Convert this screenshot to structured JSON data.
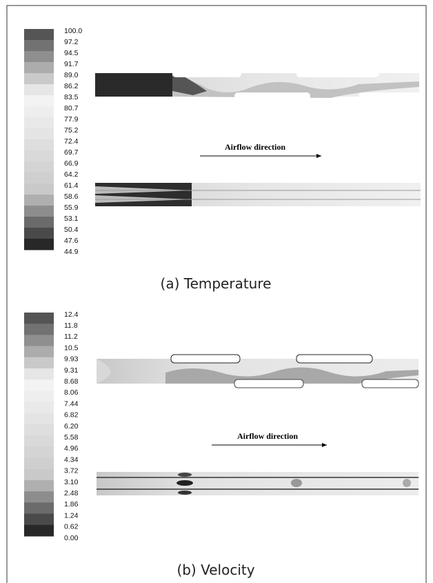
{
  "panels": [
    {
      "caption": "(a) Temperature",
      "arrow_label": "Airflow direction",
      "legend_labels": [
        "100.0",
        "97.2",
        "94.5",
        "91.7",
        "89.0",
        "86.2",
        "83.5",
        "80.7",
        "77.9",
        "75.2",
        "72.4",
        "69.7",
        "66.9",
        "64.2",
        "61.4",
        "58.6",
        "55.9",
        "53.1",
        "50.4",
        "47.6",
        "44.9"
      ]
    },
    {
      "caption": "(b) Velocity",
      "arrow_label": "Airflow direction",
      "legend_labels": [
        "12.4",
        "11.8",
        "11.2",
        "10.5",
        "9.93",
        "9.31",
        "8.68",
        "8.06",
        "7.44",
        "6.82",
        "6.20",
        "5.58",
        "4.96",
        "4.34",
        "3.72",
        "3.10",
        "2.48",
        "1.86",
        "1.24",
        "0.62",
        "0.00"
      ]
    }
  ]
}
